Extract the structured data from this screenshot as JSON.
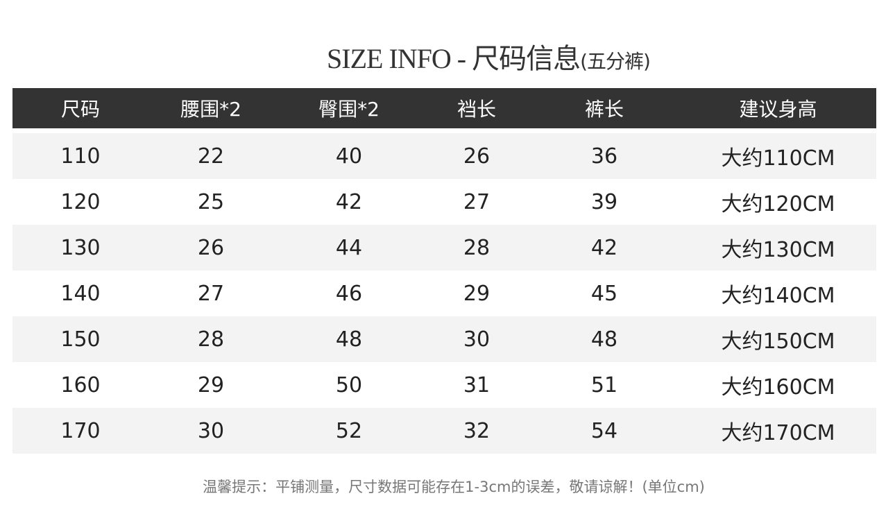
{
  "title": {
    "main": "SIZE INFO - 尺码信息",
    "sub": "(五分裤)"
  },
  "table": {
    "headers": [
      "尺码",
      "腰围*2",
      "臀围*2",
      "裆长",
      "裤长",
      "建议身高"
    ],
    "rows": [
      [
        "110",
        "22",
        "40",
        "26",
        "36",
        "大约110CM"
      ],
      [
        "120",
        "25",
        "42",
        "27",
        "39",
        "大约120CM"
      ],
      [
        "130",
        "26",
        "44",
        "28",
        "42",
        "大约130CM"
      ],
      [
        "140",
        "27",
        "46",
        "29",
        "45",
        "大约140CM"
      ],
      [
        "150",
        "28",
        "48",
        "30",
        "48",
        "大约150CM"
      ],
      [
        "160",
        "29",
        "50",
        "31",
        "51",
        "大约160CM"
      ],
      [
        "170",
        "30",
        "52",
        "32",
        "54",
        "大约170CM"
      ]
    ]
  },
  "note": "温馨提示：平铺测量，尺寸数据可能存在1-3cm的误差，敬请谅解！(单位cm)",
  "colors": {
    "header_bg": "#333333",
    "row_alt": "#f3f3f3"
  }
}
